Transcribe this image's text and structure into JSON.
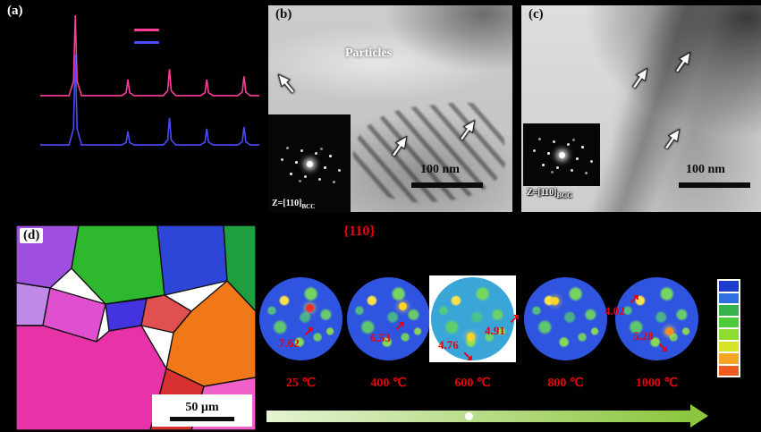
{
  "panels": {
    "a": {
      "label": "(a)",
      "legend_colors": {
        "pink": "#ff3d9a",
        "blue": "#4a4aff"
      }
    },
    "b": {
      "label": "(b)",
      "annotation": "Particles",
      "zone_axis_main": "Z=[110]",
      "zone_axis_sub": "BCC",
      "scale_bar": "100 nm"
    },
    "c": {
      "label": "(c)",
      "zone_axis_main": "Z=[110]",
      "zone_axis_sub": "BCC",
      "scale_bar": "100 nm"
    },
    "d": {
      "label": "(d)",
      "scale_bar": "50 µm"
    }
  },
  "pole_figures": {
    "title": "{110}",
    "temps": [
      "25 ℃",
      "400 ℃",
      "600 ℃",
      "800 ℃",
      "1000 ℃"
    ],
    "annotations": [
      {
        "value": "7.62",
        "arrow": "↗"
      },
      {
        "value": "6.53",
        "arrow": "↗"
      },
      {
        "value": "4.76",
        "arrow": "↘"
      },
      {
        "value": "4.91",
        "arrow": "↗"
      },
      {
        "value": "4.02",
        "arrow": "↗"
      },
      {
        "value": "5.28",
        "arrow": "↘"
      }
    ],
    "colorbar_colors": [
      "#1e3ccc",
      "#2f6fe0",
      "#36b44a",
      "#4ccb3a",
      "#8edc30",
      "#d8e428",
      "#f5a623",
      "#f05a1e"
    ],
    "accent_red": "#e8000d"
  },
  "chart_data": {
    "type": "line",
    "title": "XRD patterns (panel a)",
    "peaks_x": [
      0.16,
      0.4,
      0.59,
      0.76,
      0.93
    ],
    "series": [
      {
        "name": "pink-curve",
        "color": "#ff3d9a",
        "baseline": 0.43,
        "scale": 0.39,
        "heights": [
          1,
          0.2,
          0.33,
          0.2,
          0.24
        ]
      },
      {
        "name": "blue-curve",
        "color": "#4a4aff",
        "baseline": 0.67,
        "scale": 0.44,
        "heights": [
          1,
          0.15,
          0.3,
          0.18,
          0.2
        ]
      }
    ]
  }
}
